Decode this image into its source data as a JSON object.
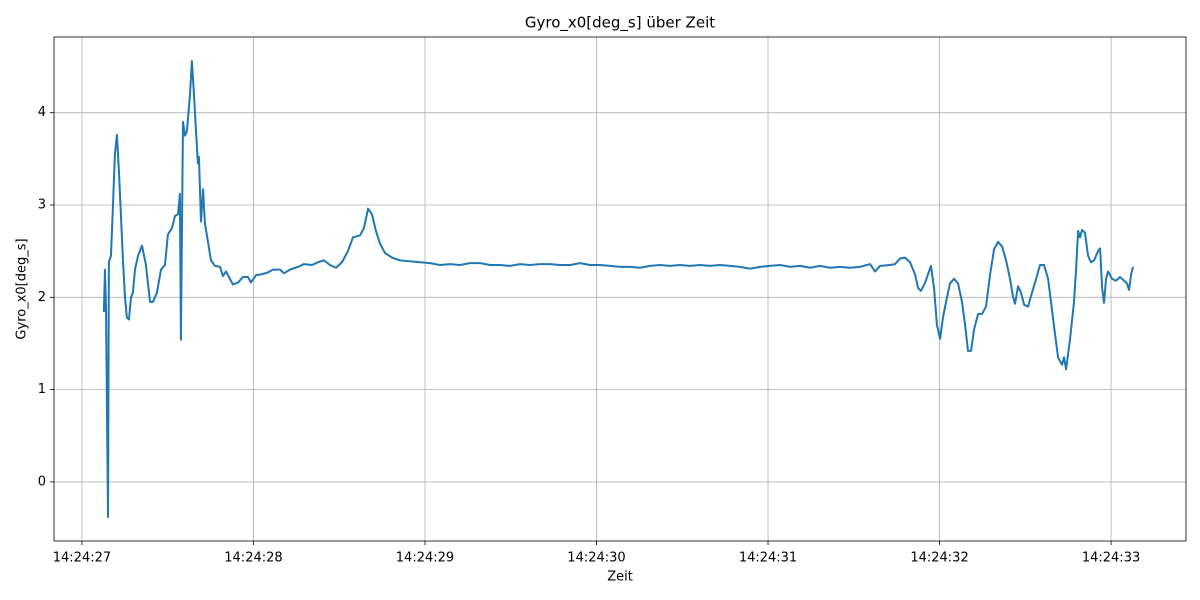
{
  "chart_data": {
    "type": "line",
    "title": "Gyro_x0[deg_s] über Zeit",
    "x_label": "Zeit",
    "y_label": "Gyro_x0[deg_s]",
    "color": "#1f77b4",
    "grid": true,
    "xlim": [
      "14:24:26.837",
      "14:24:33.437"
    ],
    "xticks": [
      "14:24:27",
      "14:24:28",
      "14:24:29",
      "14:24:30",
      "14:24:31",
      "14:24:32",
      "14:24:33"
    ],
    "ylim": [
      -0.64,
      4.82
    ],
    "yticks": [
      0,
      1,
      2,
      3,
      4
    ],
    "x": [
      "14:24:27.128",
      "14:24:27.134",
      "14:24:27.140",
      "14:24:27.152",
      "14:24:27.157",
      "14:24:27.169",
      "14:24:27.181",
      "14:24:27.192",
      "14:24:27.204",
      "14:24:27.216",
      "14:24:27.227",
      "14:24:27.239",
      "14:24:27.251",
      "14:24:27.262",
      "14:24:27.274",
      "14:24:27.286",
      "14:24:27.297",
      "14:24:27.309",
      "14:24:27.327",
      "14:24:27.350",
      "14:24:27.373",
      "14:24:27.397",
      "14:24:27.414",
      "14:24:27.437",
      "14:24:27.461",
      "14:24:27.484",
      "14:24:27.501",
      "14:24:27.525",
      "14:24:27.542",
      "14:24:27.560",
      "14:24:27.571",
      "14:24:27.577",
      "14:24:27.589",
      "14:24:27.601",
      "14:24:27.612",
      "14:24:27.630",
      "14:24:27.641",
      "14:24:27.653",
      "14:24:27.665",
      "14:24:27.676",
      "14:24:27.682",
      "14:24:27.694",
      "14:24:27.706",
      "14:24:27.717",
      "14:24:27.735",
      "14:24:27.752",
      "14:24:27.776",
      "14:24:27.805",
      "14:24:27.822",
      "14:24:27.840",
      "14:24:27.863",
      "14:24:27.880",
      "14:24:27.910",
      "14:24:27.939",
      "14:24:27.968",
      "14:24:27.985",
      "14:24:28.015",
      "14:24:28.050",
      "14:24:28.085",
      "14:24:28.114",
      "14:24:28.155",
      "14:24:28.178",
      "14:24:28.213",
      "14:24:28.260",
      "14:24:28.294",
      "14:24:28.341",
      "14:24:28.376",
      "14:24:28.411",
      "14:24:28.446",
      "14:24:28.481",
      "14:24:28.516",
      "14:24:28.551",
      "14:24:28.580",
      "14:24:28.621",
      "14:24:28.644",
      "14:24:28.668",
      "14:24:28.691",
      "14:24:28.714",
      "14:24:28.738",
      "14:24:28.767",
      "14:24:28.808",
      "14:24:28.854",
      "14:24:28.913",
      "14:24:28.971",
      "14:24:29.029",
      "14:24:29.087",
      "14:24:29.146",
      "14:24:29.204",
      "14:24:29.262",
      "14:24:29.321",
      "14:24:29.379",
      "14:24:29.437",
      "14:24:29.496",
      "14:24:29.554",
      "14:24:29.612",
      "14:24:29.671",
      "14:24:29.729",
      "14:24:29.787",
      "14:24:29.846",
      "14:24:29.904",
      "14:24:29.962",
      "14:24:30.020",
      "14:24:30.079",
      "14:24:30.137",
      "14:24:30.195",
      "14:24:30.254",
      "14:24:30.312",
      "14:24:30.370",
      "14:24:30.429",
      "14:24:30.487",
      "14:24:30.545",
      "14:24:30.604",
      "14:24:30.662",
      "14:24:30.720",
      "14:24:30.779",
      "14:24:30.837",
      "14:24:30.895",
      "14:24:30.953",
      "14:24:31.012",
      "14:24:31.070",
      "14:24:31.128",
      "14:24:31.187",
      "14:24:31.245",
      "14:24:31.303",
      "14:24:31.362",
      "14:24:31.420",
      "14:24:31.478",
      "14:24:31.537",
      "14:24:31.595",
      "14:24:31.624",
      "14:24:31.653",
      "14:24:31.711",
      "14:24:31.741",
      "14:24:31.770",
      "14:24:31.799",
      "14:24:31.828",
      "14:24:31.857",
      "14:24:31.875",
      "14:24:31.892",
      "14:24:31.916",
      "14:24:31.933",
      "14:24:31.950",
      "14:24:31.968",
      "14:24:31.985",
      "14:24:32.003",
      "14:24:32.020",
      "14:24:32.038",
      "14:24:32.061",
      "14:24:32.085",
      "14:24:32.108",
      "14:24:32.131",
      "14:24:32.149",
      "14:24:32.166",
      "14:24:32.184",
      "14:24:32.201",
      "14:24:32.225",
      "14:24:32.248",
      "14:24:32.271",
      "14:24:32.295",
      "14:24:32.318",
      "14:24:32.341",
      "14:24:32.365",
      "14:24:32.388",
      "14:24:32.411",
      "14:24:32.429",
      "14:24:32.440",
      "14:24:32.458",
      "14:24:32.475",
      "14:24:32.493",
      "14:24:32.516",
      "14:24:32.539",
      "14:24:32.563",
      "14:24:32.586",
      "14:24:32.609",
      "14:24:32.633",
      "14:24:32.650",
      "14:24:32.668",
      "14:24:32.691",
      "14:24:32.714",
      "14:24:32.726",
      "14:24:32.738",
      "14:24:32.761",
      "14:24:32.784",
      "14:24:32.796",
      "14:24:32.808",
      "14:24:32.819",
      "14:24:32.831",
      "14:24:32.848",
      "14:24:32.866",
      "14:24:32.883",
      "14:24:32.901",
      "14:24:32.924",
      "14:24:32.936",
      "14:24:32.948",
      "14:24:32.959",
      "14:24:32.971",
      "14:24:32.983",
      "14:24:33.006",
      "14:24:33.029",
      "14:24:33.052",
      "14:24:33.076",
      "14:24:33.093",
      "14:24:33.105",
      "14:24:33.117",
      "14:24:33.128"
    ],
    "values": [
      1.84,
      2.3,
      1.9,
      -0.38,
      2.38,
      2.45,
      3.0,
      3.55,
      3.76,
      3.35,
      2.9,
      2.4,
      2.0,
      1.78,
      1.76,
      2.0,
      2.05,
      2.3,
      2.45,
      2.56,
      2.35,
      1.95,
      1.95,
      2.05,
      2.3,
      2.35,
      2.68,
      2.75,
      2.88,
      2.9,
      3.12,
      1.54,
      3.9,
      3.75,
      3.8,
      4.2,
      4.56,
      4.2,
      3.8,
      3.45,
      3.52,
      2.82,
      3.17,
      2.8,
      2.6,
      2.4,
      2.34,
      2.33,
      2.23,
      2.28,
      2.2,
      2.14,
      2.16,
      2.22,
      2.22,
      2.16,
      2.24,
      2.25,
      2.27,
      2.3,
      2.3,
      2.26,
      2.3,
      2.33,
      2.36,
      2.35,
      2.38,
      2.4,
      2.35,
      2.32,
      2.38,
      2.5,
      2.65,
      2.67,
      2.75,
      2.96,
      2.9,
      2.72,
      2.58,
      2.48,
      2.43,
      2.4,
      2.39,
      2.38,
      2.37,
      2.35,
      2.36,
      2.35,
      2.37,
      2.37,
      2.35,
      2.35,
      2.34,
      2.36,
      2.35,
      2.36,
      2.36,
      2.35,
      2.35,
      2.37,
      2.35,
      2.35,
      2.34,
      2.33,
      2.33,
      2.32,
      2.34,
      2.35,
      2.34,
      2.35,
      2.34,
      2.35,
      2.34,
      2.35,
      2.34,
      2.33,
      2.31,
      2.33,
      2.34,
      2.35,
      2.33,
      2.34,
      2.32,
      2.34,
      2.32,
      2.33,
      2.32,
      2.33,
      2.36,
      2.28,
      2.34,
      2.35,
      2.36,
      2.42,
      2.43,
      2.38,
      2.25,
      2.1,
      2.07,
      2.16,
      2.25,
      2.34,
      2.1,
      1.7,
      1.55,
      1.78,
      1.95,
      2.15,
      2.2,
      2.15,
      1.95,
      1.7,
      1.42,
      1.42,
      1.65,
      1.82,
      1.82,
      1.9,
      2.25,
      2.52,
      2.6,
      2.55,
      2.4,
      2.2,
      2.0,
      1.93,
      2.12,
      2.05,
      1.92,
      1.9,
      2.05,
      2.2,
      2.35,
      2.35,
      2.2,
      1.95,
      1.68,
      1.35,
      1.27,
      1.35,
      1.22,
      1.55,
      1.95,
      2.3,
      2.72,
      2.65,
      2.73,
      2.7,
      2.45,
      2.38,
      2.4,
      2.5,
      2.53,
      2.1,
      1.94,
      2.2,
      2.28,
      2.2,
      2.18,
      2.22,
      2.18,
      2.15,
      2.08,
      2.25,
      2.33
    ]
  }
}
